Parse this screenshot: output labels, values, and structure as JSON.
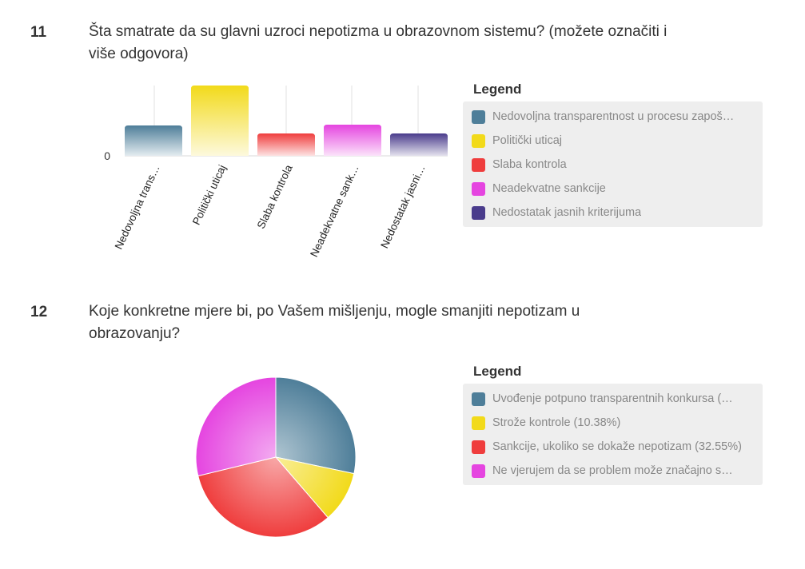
{
  "questions": [
    {
      "number": "11",
      "text": "Šta smatrate da su glavni uzroci nepotizma u obrazovnom sistemu? (možete označiti i više odgovora)",
      "legend_title": "Legend",
      "legend": [
        {
          "label": "Nedovoljna transparentnost u procesu zapoš…",
          "color": "#4e7e99"
        },
        {
          "label": "Politički uticaj",
          "color": "#f2da1a"
        },
        {
          "label": "Slaba kontrola",
          "color": "#ef3d3d"
        },
        {
          "label": "Neadekvatne sankcije",
          "color": "#e545e0"
        },
        {
          "label": "Nedostatak jasnih kriterijuma",
          "color": "#4a3c8c"
        }
      ]
    },
    {
      "number": "12",
      "text": "Koje konkretne mjere bi, po Vašem mišljenju, mogle smanjiti nepotizam u obrazovanju?",
      "legend_title": "Legend",
      "legend": [
        {
          "label": "Uvođenje potpuno transparentnih konkursa (…",
          "color": "#4e7e99"
        },
        {
          "label": "Strože kontrole (10.38%)",
          "color": "#f2da1a"
        },
        {
          "label": "Sankcije, ukoliko se dokaže nepotizam (32.55%)",
          "color": "#ef3d3d"
        },
        {
          "label": "Ne vjerujem da se problem može značajno s…",
          "color": "#e545e0"
        }
      ]
    }
  ],
  "chart_data": [
    {
      "type": "bar",
      "categories": [
        "Nedovoljna trans…",
        "Politički uticaj",
        "Slaba kontrola",
        "Neadekvatne sank…",
        "Nedostatak jasni…"
      ],
      "values": [
        38,
        88,
        28,
        39,
        28
      ],
      "ylim": [
        0,
        88
      ],
      "yticks": [
        "0"
      ],
      "colors": [
        "#4e7e99",
        "#f2da1a",
        "#ef3d3d",
        "#e545e0",
        "#4a3c8c"
      ],
      "grid": true,
      "legend_position": "right"
    },
    {
      "type": "pie",
      "labels": [
        "Uvođenje potpuno transparentnih konkursa (…",
        "Strože kontrole (10.38%)",
        "Sankcije, ukoliko se dokaže nepotizam (32.55%)",
        "Ne vjerujem da se problem može značajno s…"
      ],
      "values": [
        28.3,
        10.38,
        32.55,
        28.77
      ],
      "colors": [
        "#4e7e99",
        "#f2da1a",
        "#ef3d3d",
        "#e545e0"
      ],
      "legend_position": "right"
    }
  ]
}
